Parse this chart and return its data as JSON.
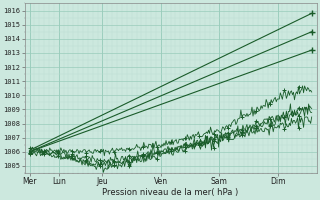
{
  "background_color": "#cce8de",
  "grid_major_color": "#99ccbb",
  "grid_minor_color": "#bbddd4",
  "line_color": "#1a5c2a",
  "xlabel": "Pression niveau de la mer( hPa )",
  "ylim": [
    1004.5,
    1016.5
  ],
  "yticks": [
    1005,
    1006,
    1007,
    1008,
    1009,
    1010,
    1011,
    1012,
    1013,
    1014,
    1015,
    1016
  ],
  "xtick_labels": [
    "Mer",
    "Lun",
    "Jeu",
    "Ven",
    "Sam",
    "Dim"
  ],
  "xtick_positions": [
    0,
    30,
    75,
    135,
    195,
    255
  ],
  "xlim": [
    0,
    290
  ],
  "series": [
    {
      "points": [
        [
          0,
          1006.1
        ],
        [
          290,
          1015.8
        ]
      ],
      "noise": 0.0,
      "smooth": true,
      "end_spike": false
    },
    {
      "points": [
        [
          0,
          1006.0
        ],
        [
          290,
          1014.5
        ]
      ],
      "noise": 0.0,
      "smooth": true,
      "end_spike": false
    },
    {
      "points": [
        [
          0,
          1006.0
        ],
        [
          290,
          1013.2
        ]
      ],
      "noise": 0.0,
      "smooth": true,
      "end_spike": false
    },
    {
      "points": [
        [
          0,
          1006.2
        ],
        [
          30,
          1006.1
        ],
        [
          75,
          1006.0
        ],
        [
          135,
          1006.5
        ],
        [
          195,
          1007.5
        ],
        [
          255,
          1009.8
        ],
        [
          270,
          1010.2
        ],
        [
          285,
          1010.5
        ],
        [
          290,
          1010.3
        ]
      ],
      "noise": 0.18,
      "smooth": false,
      "end_spike": true
    },
    {
      "points": [
        [
          0,
          1006.1
        ],
        [
          30,
          1005.9
        ],
        [
          75,
          1005.3
        ],
        [
          135,
          1006.0
        ],
        [
          195,
          1007.0
        ],
        [
          255,
          1008.5
        ],
        [
          285,
          1009.1
        ],
        [
          290,
          1009.2
        ]
      ],
      "noise": 0.2,
      "smooth": false,
      "end_spike": true
    },
    {
      "points": [
        [
          0,
          1006.0
        ],
        [
          30,
          1005.8
        ],
        [
          75,
          1004.8
        ],
        [
          135,
          1005.8
        ],
        [
          195,
          1007.0
        ],
        [
          255,
          1008.2
        ],
        [
          285,
          1008.8
        ],
        [
          290,
          1008.9
        ]
      ],
      "noise": 0.22,
      "smooth": false,
      "end_spike": false
    },
    {
      "points": [
        [
          0,
          1006.0
        ],
        [
          30,
          1005.7
        ],
        [
          75,
          1005.0
        ],
        [
          135,
          1006.0
        ],
        [
          195,
          1006.8
        ],
        [
          255,
          1007.8
        ],
        [
          285,
          1008.2
        ],
        [
          290,
          1008.3
        ]
      ],
      "noise": 0.2,
      "smooth": false,
      "end_spike": false
    }
  ]
}
